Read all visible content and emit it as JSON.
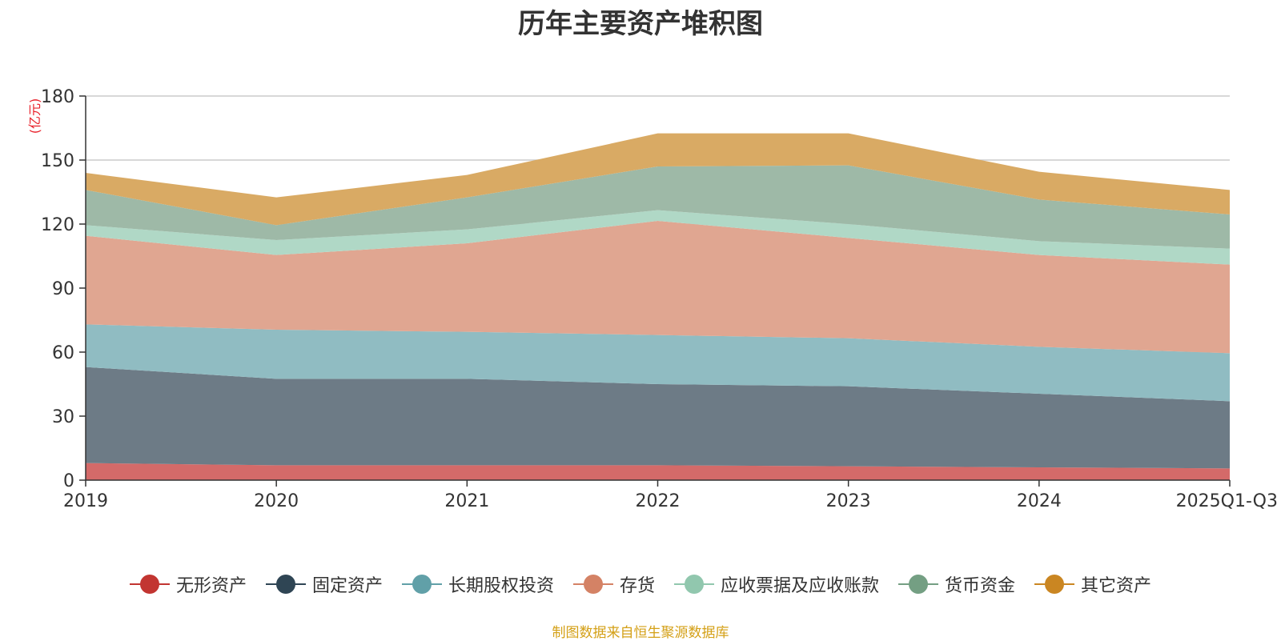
{
  "chart_data": {
    "type": "area",
    "stacked": true,
    "title": "历年主要资产堆积图",
    "ylabel": "(亿元)",
    "ylim": [
      0,
      180
    ],
    "yticks": [
      0,
      30,
      60,
      90,
      120,
      150,
      180
    ],
    "categories": [
      "2019",
      "2020",
      "2021",
      "2022",
      "2023",
      "2024",
      "2025Q1-Q3"
    ],
    "series": [
      {
        "name": "无形资产",
        "color": "#c23531",
        "fill": "#d46a69",
        "values": [
          8,
          7,
          7,
          7,
          6.5,
          6,
          5.5
        ]
      },
      {
        "name": "固定资产",
        "color": "#2f4554",
        "fill": "#6d7b86",
        "values": [
          45,
          40.5,
          40.5,
          38,
          37.5,
          34.5,
          31.5
        ]
      },
      {
        "name": "长期股权投资",
        "color": "#61a0a8",
        "fill": "#90bcc2",
        "values": [
          20,
          23,
          22,
          23,
          22.5,
          22,
          22.5
        ]
      },
      {
        "name": "存货",
        "color": "#d48265",
        "fill": "#e0a691",
        "values": [
          41.5,
          35,
          41.5,
          53.5,
          47,
          43,
          41.5
        ]
      },
      {
        "name": "应收票据及应收账款",
        "color": "#91c7ae",
        "fill": "#b0d8c6",
        "values": [
          5,
          7,
          6.5,
          5,
          6.5,
          6.5,
          7.5
        ]
      },
      {
        "name": "货币资金",
        "color": "#749f83",
        "fill": "#9eb9a7",
        "values": [
          16.5,
          7,
          15,
          20.5,
          27.5,
          19.5,
          16
        ]
      },
      {
        "name": "其它资产",
        "color": "#ca8622",
        "fill": "#d9aa64",
        "values": [
          8,
          13,
          10.5,
          15.5,
          15,
          13,
          11.5
        ]
      }
    ]
  },
  "source_text": "制图数据来自恒生聚源数据库"
}
